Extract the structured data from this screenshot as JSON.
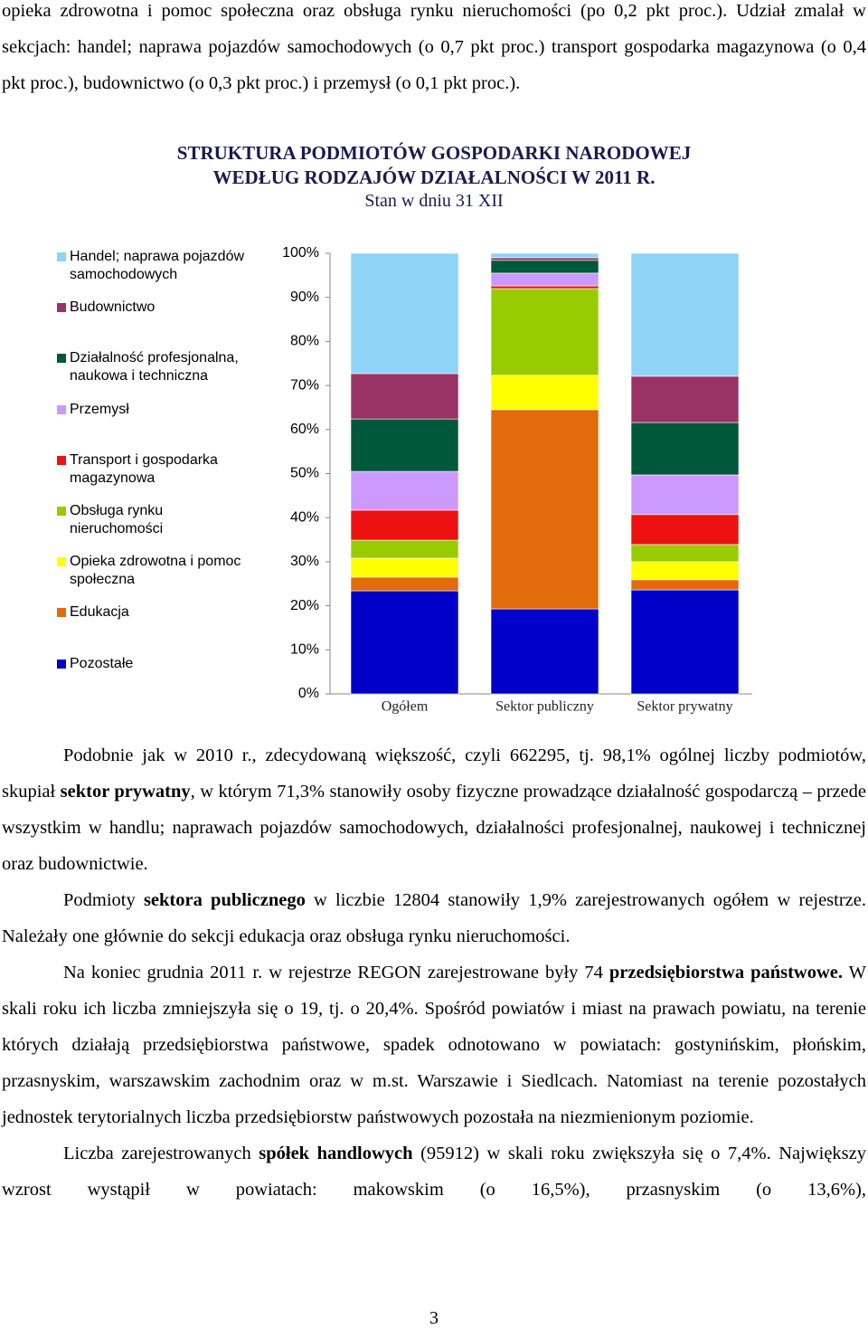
{
  "text_top": [
    {
      "runs": [
        {
          "text": "opieka zdrowotna i pomoc społeczna oraz obsługa rynku nieruchomości (po 0,2 pkt proc.). Udział zmalał w sekcjach: handel; naprawa pojazdów samochodowych (o 0,7 pkt proc.) transport  gospodarka magazynowa (o 0,4 pkt proc.), budownictwo (o 0,3 pkt proc.) i przemysł (o 0,1 pkt proc.).",
          "bold": false
        }
      ]
    }
  ],
  "chart_data": {
    "type": "stacked_bar",
    "title": "STRUKTURA PODMIOTÓW GOSPODARKI NARODOWEJ",
    "title_line2": "WEDŁUG RODZAJÓW DZIAŁALNOŚCI W 2011 R.",
    "subtitle": "Stan w dniu 31 XII",
    "categories": [
      "Ogółem",
      "Sektor publiczny",
      "Sektor prywatny"
    ],
    "series": [
      {
        "name": "Handel; naprawa pojazdów samochodowych",
        "color": "#8fd3f7",
        "values": [
          27.3,
          1.0,
          27.9
        ]
      },
      {
        "name": "Budownictwo",
        "color": "#993366",
        "values": [
          10.3,
          0.6,
          10.5
        ]
      },
      {
        "name": "Działalność profesjonalna, naukowa i techniczna",
        "color": "#00583a",
        "values": [
          11.9,
          2.9,
          11.9
        ]
      },
      {
        "name": "Przemysł",
        "color": "#cc99ff",
        "values": [
          8.8,
          2.9,
          9.0
        ]
      },
      {
        "name": "Transport i gospodarka magazynowa",
        "color": "#ee1111",
        "values": [
          6.8,
          0.6,
          6.8
        ]
      },
      {
        "name": "Obsługa rynku nieruchomości",
        "color": "#99cc00",
        "values": [
          4.1,
          19.7,
          3.9
        ]
      },
      {
        "name": "Opieka zdrowotna i pomoc społeczna",
        "color": "#ffff00",
        "values": [
          4.3,
          7.8,
          4.1
        ]
      },
      {
        "name": "Edukacja",
        "color": "#e26b0a",
        "values": [
          3.1,
          45.2,
          2.3
        ]
      },
      {
        "name": "Pozostałe",
        "color": "#0000c8",
        "values": [
          23.4,
          19.3,
          23.6
        ]
      }
    ],
    "ylim": [
      0,
      100
    ],
    "yticks": [
      {
        "value": 0,
        "label": "0%"
      },
      {
        "value": 10,
        "label": "10%"
      },
      {
        "value": 20,
        "label": "20%"
      },
      {
        "value": 30,
        "label": "30%"
      },
      {
        "value": 40,
        "label": "40%"
      },
      {
        "value": 50,
        "label": "50%"
      },
      {
        "value": 60,
        "label": "60%"
      },
      {
        "value": 70,
        "label": "70%"
      },
      {
        "value": 80,
        "label": "80%"
      },
      {
        "value": 90,
        "label": "90%"
      },
      {
        "value": 100,
        "label": "100%"
      }
    ],
    "legend": "left"
  },
  "text_bottom": [
    {
      "runs": [
        {
          "text": "Podobnie jak w 2010 r., zdecydowaną większość, czyli 662295, tj. 98,1% ogólnej liczby podmiotów, skupiał ",
          "bold": false
        },
        {
          "text": "sektor prywatny",
          "bold": true
        },
        {
          "text": ", w którym 71,3% stanowiły osoby fizyczne prowadzące działalność gospodarczą – przede wszystkim w handlu; naprawach pojazdów samochodowych, działalności profesjonalnej, naukowej i technicznej oraz budownictwie.",
          "bold": false
        }
      ]
    },
    {
      "runs": [
        {
          "text": "Podmioty ",
          "bold": false
        },
        {
          "text": "sektora publicznego",
          "bold": true
        },
        {
          "text": " w liczbie 12804 stanowiły 1,9% zarejestrowanych ogółem w rejestrze. Należały one głównie do sekcji edukacja oraz obsługa rynku nieruchomości.",
          "bold": false
        }
      ]
    },
    {
      "runs": [
        {
          "text": "Na koniec grudnia 2011 r. w rejestrze REGON zarejestrowane były 74 ",
          "bold": false
        },
        {
          "text": "przedsiębiorstwa państwowe.",
          "bold": true
        },
        {
          "text": " W skali roku ich liczba zmniejszyła się o 19, tj. o 20,4%. Spośród powiatów i miast na prawach powiatu, na terenie których działają przedsiębiorstwa państwowe, spadek odnotowano w powiatach: gostynińskim, płońskim, przasnyskim, warszawskim zachodnim oraz w m.st. Warszawie i Siedlcach. Natomiast na terenie pozostałych jednostek terytorialnych liczba przedsiębiorstw państwowych pozostała na niezmienionym poziomie.",
          "bold": false
        }
      ]
    },
    {
      "runs": [
        {
          "text": "Liczba zarejestrowanych ",
          "bold": false
        },
        {
          "text": "spółek handlowych",
          "bold": true
        },
        {
          "text": " (95912) w skali roku zwiększyła się o 7,4%. Największy wzrost wystąpił w powiatach: makowskim (o 16,5%), przasnyskim (o 13,6%),",
          "bold": false
        }
      ]
    }
  ],
  "page_number": "3"
}
